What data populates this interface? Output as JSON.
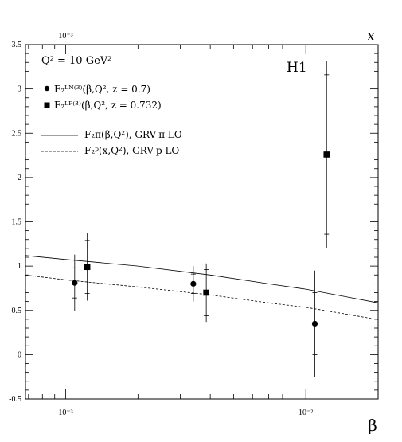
{
  "chart_data": {
    "type": "scatter",
    "experiment_label": "H1",
    "annotation_q2": "Q² = 10 GeV²",
    "xlabel": "β",
    "x2label": "x",
    "xscale": "log",
    "xlim": [
      0.00068,
      0.02
    ],
    "ylim": [
      -0.5,
      3.5
    ],
    "yticks": [
      "-0.5",
      "0",
      "0.5",
      "1",
      "1.5",
      "2",
      "2.5",
      "3",
      "3.5"
    ],
    "xtick_labels": [
      {
        "value": 0.001,
        "label": "10⁻³"
      },
      {
        "value": 0.01,
        "label": "10⁻²"
      }
    ],
    "x2tick_labels": [
      {
        "value": 0.001,
        "label": "10⁻³"
      }
    ],
    "legend": [
      {
        "marker": "circle",
        "label": "F₂ᴸᴺ⁽³⁾(β,Q², z = 0.7)"
      },
      {
        "marker": "square",
        "label": "F₂ᴸᴾ⁽³⁾(β,Q², z = 0.732)"
      },
      {
        "marker": "solid-line",
        "label": "F₂π(β,Q²), GRV-π LO"
      },
      {
        "marker": "dashed-line",
        "label": "F₂ᵖ(x,Q²), GRV-p LO"
      }
    ],
    "series": [
      {
        "marker": "circle",
        "points": [
          {
            "x": 0.00109,
            "y": 0.81,
            "stat": 0.17,
            "tot": 0.32
          },
          {
            "x": 0.0034,
            "y": 0.8,
            "stat": 0.11,
            "tot": 0.2
          },
          {
            "x": 0.0109,
            "y": 0.35,
            "stat": 0.35,
            "tot": 0.6
          }
        ]
      },
      {
        "marker": "square",
        "points": [
          {
            "x": 0.00123,
            "y": 0.99,
            "stat": 0.3,
            "tot": 0.38
          },
          {
            "x": 0.00385,
            "y": 0.7,
            "stat": 0.26,
            "tot": 0.33
          },
          {
            "x": 0.0122,
            "y": 2.26,
            "stat": 0.9,
            "tot": 1.06
          }
        ]
      },
      {
        "line": "solid",
        "points": [
          {
            "x": 0.00068,
            "y": 1.12
          },
          {
            "x": 0.001,
            "y": 1.075
          },
          {
            "x": 0.002,
            "y": 1.0
          },
          {
            "x": 0.004,
            "y": 0.9
          },
          {
            "x": 0.007,
            "y": 0.8
          },
          {
            "x": 0.01,
            "y": 0.74
          },
          {
            "x": 0.015,
            "y": 0.65
          },
          {
            "x": 0.02,
            "y": 0.585
          }
        ]
      },
      {
        "line": "dashed",
        "points": [
          {
            "x": 0.00068,
            "y": 0.9
          },
          {
            "x": 0.001,
            "y": 0.845
          },
          {
            "x": 0.002,
            "y": 0.765
          },
          {
            "x": 0.004,
            "y": 0.675
          },
          {
            "x": 0.007,
            "y": 0.585
          },
          {
            "x": 0.01,
            "y": 0.535
          },
          {
            "x": 0.015,
            "y": 0.455
          },
          {
            "x": 0.02,
            "y": 0.395
          }
        ]
      }
    ]
  }
}
